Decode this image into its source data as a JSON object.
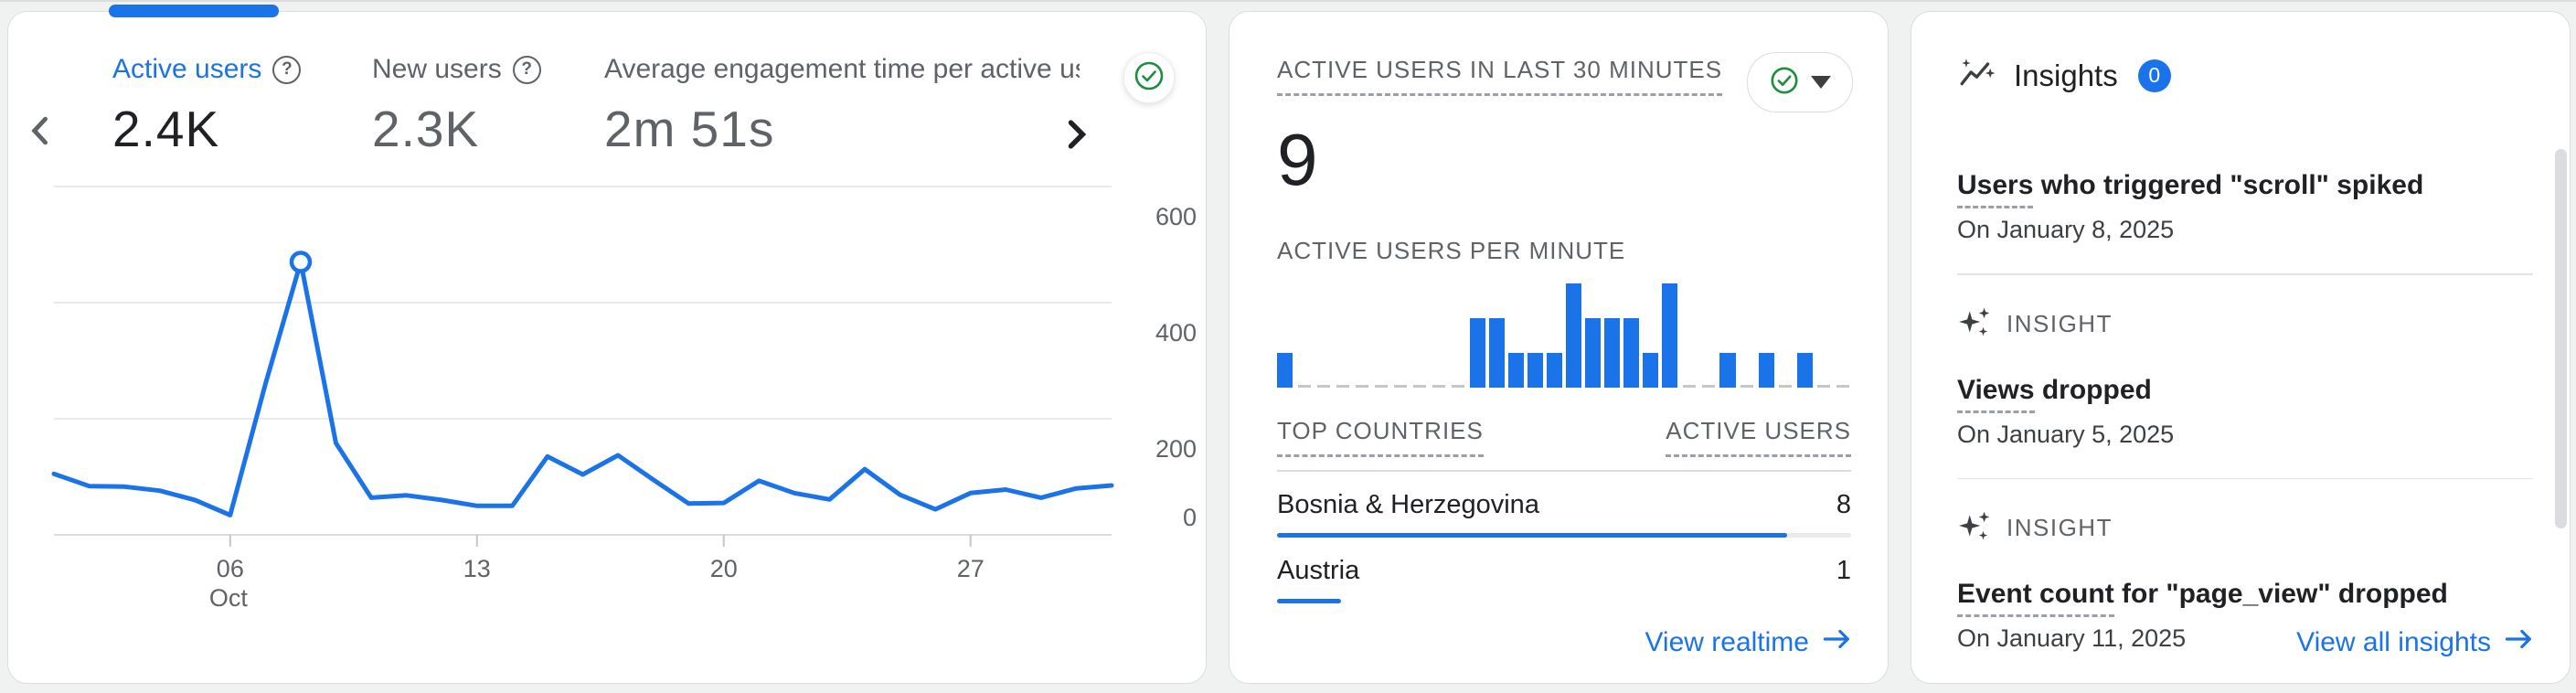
{
  "colors": {
    "accent_blue": "#1a73e8",
    "status_green": "#1e8e3e",
    "text_primary": "#202124",
    "text_secondary": "#5f6368",
    "card_border": "#dadce0",
    "page_bg": "#f0f1f1",
    "gridline": "#e8eaed",
    "zero_dash": "#c4c7c5",
    "badge_bg": "#1a73e8",
    "scrollbar": "#dadce0"
  },
  "summary_card": {
    "tabs": [
      {
        "label": "Active users",
        "value": "2.4K",
        "active": true
      },
      {
        "label": "New users",
        "value": "2.3K",
        "active": false
      },
      {
        "label": "Average engagement time per active us",
        "value": "2m 51s",
        "active": false
      }
    ],
    "status_icon": "check-circle-green"
  },
  "realtime_card": {
    "title": "ACTIVE USERS IN LAST 30 MINUTES",
    "value": "9",
    "status_button": {
      "icon": "check-circle-green",
      "caret": "down"
    },
    "per_minute_label": "ACTIVE USERS PER MINUTE",
    "countries_table": {
      "headers": [
        "TOP COUNTRIES",
        "ACTIVE USERS"
      ],
      "rows": [
        {
          "country": "Bosnia & Herzegovina",
          "active_users": 8,
          "bar_pct": 88.9,
          "track_visible": true
        },
        {
          "country": "Austria",
          "active_users": 1,
          "bar_pct": 11.1,
          "track_visible": false
        }
      ]
    },
    "footer_link": {
      "label": "View realtime",
      "icon": "arrow-right"
    }
  },
  "insights_card": {
    "title": "Insights",
    "badge_count": "0",
    "items": [
      {
        "title": "Users who triggered \"scroll\" spiked",
        "title_term": "Users",
        "title_rest": " who triggered \"scroll\" spiked",
        "date": "On January 8, 2025"
      },
      {
        "eyebrow": "INSIGHT",
        "title": "Views dropped",
        "title_term": "Views",
        "title_rest": " dropped",
        "date": "On January 5, 2025"
      },
      {
        "eyebrow": "INSIGHT",
        "title": "Event count for \"page_view\" dropped",
        "title_term": "Event count",
        "title_rest": " for \"page_view\" dropped",
        "date": "On January 11, 2025"
      }
    ],
    "footer_link": {
      "label": "View all insights",
      "icon": "arrow-right"
    }
  },
  "chart_data": [
    {
      "type": "line",
      "name": "active-users-by-day",
      "series": [
        {
          "name": "Active users",
          "values": [
            105,
            84,
            83,
            76,
            60,
            34,
            260,
            470,
            158,
            64,
            68,
            60,
            50,
            50,
            135,
            104,
            137,
            95,
            54,
            55,
            93,
            72,
            61,
            113,
            69,
            44,
            72,
            78,
            64,
            80,
            85
          ]
        }
      ],
      "x_unit": "day of October",
      "x_ticks": [
        {
          "index": 5,
          "label": "06",
          "sublabel": "Oct"
        },
        {
          "index": 12,
          "label": "13"
        },
        {
          "index": 19,
          "label": "20"
        },
        {
          "index": 26,
          "label": "27"
        }
      ],
      "y_ticks": [
        0,
        200,
        400,
        600
      ],
      "ylim": [
        0,
        650
      ],
      "grid": true,
      "marker_at_max": true,
      "color": "#1a73e8"
    },
    {
      "type": "bar",
      "name": "active-users-per-minute",
      "x_unit": "minute (last 30 minutes)",
      "values": [
        1,
        0,
        0,
        0,
        0,
        0,
        0,
        0,
        0,
        0,
        2,
        2,
        1,
        1,
        1,
        3,
        2,
        2,
        2,
        1,
        3,
        0,
        0,
        1,
        0,
        1,
        0,
        1,
        0,
        0
      ],
      "ylim": [
        0,
        3
      ],
      "color": "#1a73e8",
      "zero_marker": "dash"
    }
  ]
}
